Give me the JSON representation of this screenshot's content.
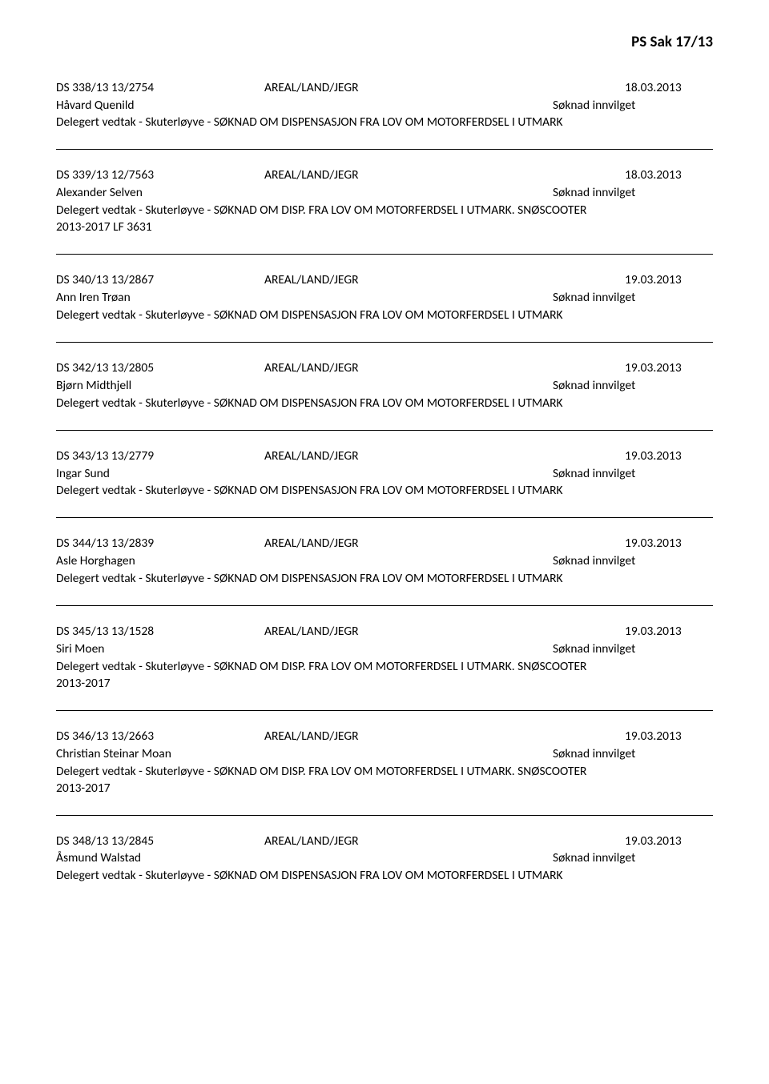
{
  "page_header": "PS Sak 17/13",
  "entries": [
    {
      "case_id": "DS  338/13  13/2754",
      "category": "AREAL/LAND/JEGR",
      "date": "18.03.2013",
      "name": "Håvard Quenild",
      "status": "Søknad innvilget",
      "description": "Delegert vedtak - Skuterløyve - SØKNAD OM DISPENSASJON FRA LOV OM MOTORFERDSEL I UTMARK",
      "suffix": ""
    },
    {
      "case_id": "DS  339/13  12/7563",
      "category": "AREAL/LAND/JEGR",
      "date": "18.03.2013",
      "name": "Alexander Selven",
      "status": "Søknad innvilget",
      "description": "Delegert vedtak - Skuterløyve - SØKNAD OM DISP. FRA LOV OM MOTORFERDSEL I UTMARK. SNØSCOOTER",
      "suffix": "2013-2017 LF 3631"
    },
    {
      "case_id": "DS  340/13  13/2867",
      "category": "AREAL/LAND/JEGR",
      "date": "19.03.2013",
      "name": "Ann Iren Trøan",
      "status": "Søknad innvilget",
      "description": "Delegert vedtak - Skuterløyve - SØKNAD OM DISPENSASJON FRA LOV OM MOTORFERDSEL I UTMARK",
      "suffix": ""
    },
    {
      "case_id": "DS  342/13  13/2805",
      "category": "AREAL/LAND/JEGR",
      "date": "19.03.2013",
      "name": "Bjørn Midthjell",
      "status": "Søknad innvilget",
      "description": "Delegert vedtak - Skuterløyve - SØKNAD OM DISPENSASJON FRA LOV OM MOTORFERDSEL I UTMARK",
      "suffix": ""
    },
    {
      "case_id": "DS  343/13  13/2779",
      "category": "AREAL/LAND/JEGR",
      "date": "19.03.2013",
      "name": "Ingar Sund",
      "status": "Søknad innvilget",
      "description": "Delegert vedtak - Skuterløyve - SØKNAD OM DISPENSASJON FRA LOV OM MOTORFERDSEL I UTMARK",
      "suffix": ""
    },
    {
      "case_id": "DS  344/13  13/2839",
      "category": "AREAL/LAND/JEGR",
      "date": "19.03.2013",
      "name": "Asle Horghagen",
      "status": "Søknad innvilget",
      "description": "Delegert vedtak - Skuterløyve - SØKNAD OM DISPENSASJON FRA LOV OM MOTORFERDSEL I UTMARK",
      "suffix": ""
    },
    {
      "case_id": "DS  345/13  13/1528",
      "category": "AREAL/LAND/JEGR",
      "date": "19.03.2013",
      "name": "Siri Moen",
      "status": "Søknad innvilget",
      "description": "Delegert vedtak - Skuterløyve - SØKNAD OM DISP. FRA LOV OM MOTORFERDSEL I UTMARK. SNØSCOOTER",
      "suffix": "2013-2017"
    },
    {
      "case_id": "DS  346/13  13/2663",
      "category": "AREAL/LAND/JEGR",
      "date": "19.03.2013",
      "name": "Christian Steinar Moan",
      "status": "Søknad innvilget",
      "description": "Delegert vedtak - Skuterløyve - SØKNAD OM DISP. FRA LOV OM MOTORFERDSEL I UTMARK. SNØSCOOTER",
      "suffix": "2013-2017"
    },
    {
      "case_id": "DS  348/13  13/2845",
      "category": "AREAL/LAND/JEGR",
      "date": "19.03.2013",
      "name": "Åsmund Walstad",
      "status": "Søknad innvilget",
      "description": "Delegert vedtak - Skuterløyve - SØKNAD OM DISPENSASJON FRA LOV OM MOTORFERDSEL I UTMARK",
      "suffix": ""
    }
  ]
}
